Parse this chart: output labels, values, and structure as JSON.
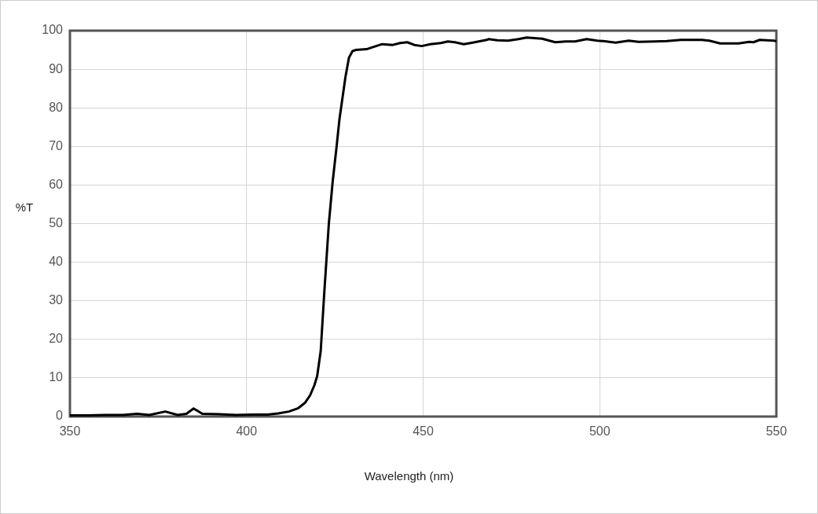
{
  "chart_data": {
    "type": "line",
    "xlabel": "Wavelength (nm)",
    "ylabel": "%T",
    "x": [
      350,
      355,
      360,
      365,
      369,
      372.5,
      377,
      380.5,
      383,
      385,
      387.5,
      392,
      397,
      402,
      406,
      409,
      412,
      414.5,
      416.5,
      418,
      419.2,
      420,
      421,
      422,
      423.3,
      424.4,
      425.5,
      426.3,
      427,
      428,
      429,
      430,
      431,
      434,
      436,
      438.4,
      441.4,
      443.5,
      445.5,
      447.5,
      449.6,
      452,
      455,
      457,
      459,
      461.5,
      464,
      468,
      468.5,
      471,
      474,
      477,
      479.3,
      483.7,
      487.4,
      490.4,
      493,
      496.3,
      499.3,
      501,
      504.5,
      508.2,
      511,
      515.6,
      519,
      523,
      528.9,
      531,
      534.1,
      539.3,
      542.3,
      543.5,
      545.3,
      549.3,
      550
    ],
    "values": [
      0.3,
      0.3,
      0.4,
      0.4,
      0.7,
      0.4,
      1.3,
      0.4,
      0.7,
      2.1,
      0.7,
      0.6,
      0.4,
      0.5,
      0.5,
      0.8,
      1.3,
      2.1,
      3.5,
      5.5,
      8.1,
      10.5,
      17,
      32,
      50,
      61,
      70,
      77,
      81.5,
      88,
      93,
      94.7,
      95.0,
      95.2,
      95.8,
      96.5,
      96.3,
      96.8,
      97.0,
      96.3,
      96.0,
      96.5,
      96.8,
      97.2,
      97.0,
      96.5,
      96.9,
      97.6,
      97.8,
      97.5,
      97.4,
      97.8,
      98.2,
      97.9,
      97.0,
      97.2,
      97.2,
      97.8,
      97.4,
      97.3,
      96.9,
      97.4,
      97.1,
      97.2,
      97.3,
      97.6,
      97.6,
      97.4,
      96.7,
      96.7,
      97.1,
      97.0,
      97.6,
      97.4,
      97.3
    ],
    "color": "#000000",
    "xlim": [
      350,
      550
    ],
    "xticks": [
      350,
      400,
      450,
      500,
      550
    ],
    "ylim": [
      0,
      100
    ],
    "yticks": [
      0,
      10,
      20,
      30,
      40,
      50,
      60,
      70,
      80,
      90,
      100
    ],
    "grid": true,
    "legend": false,
    "marker": "none",
    "line_style": "solid"
  }
}
